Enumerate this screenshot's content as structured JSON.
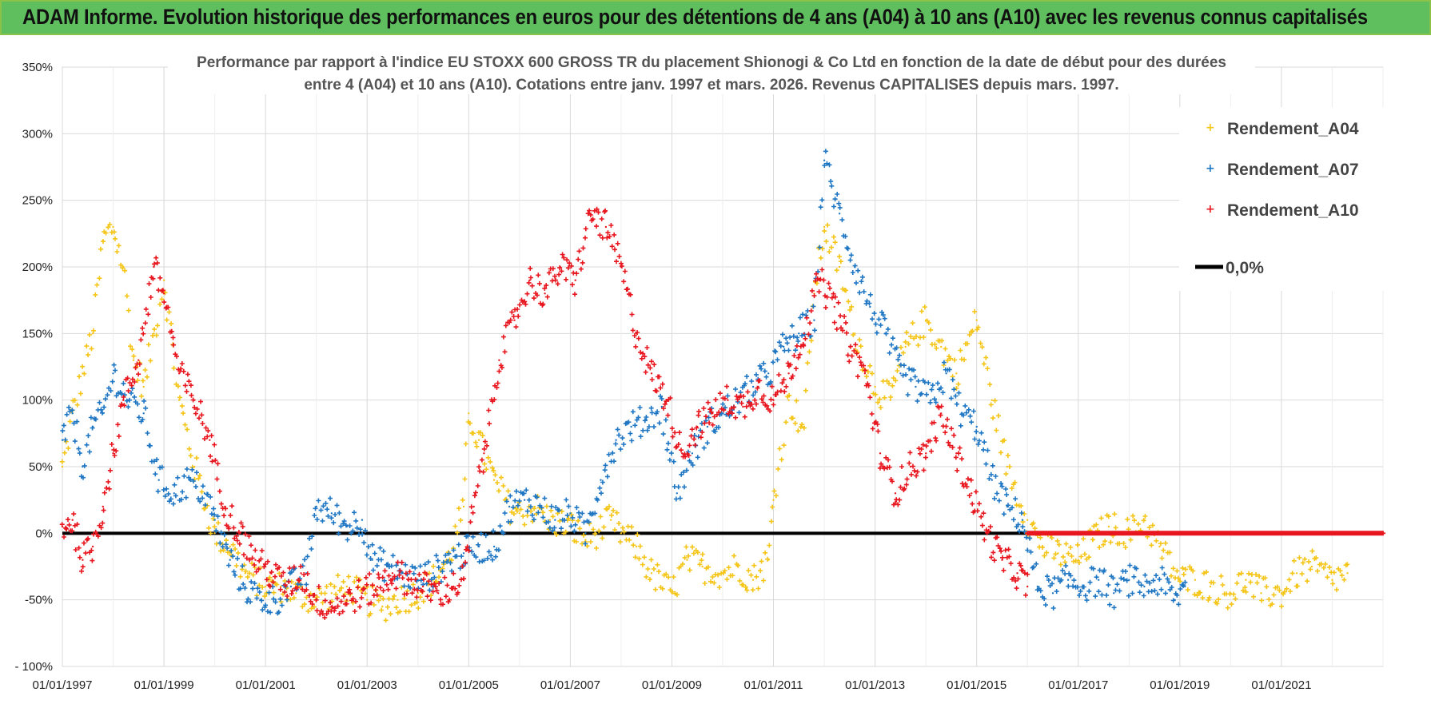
{
  "banner": {
    "title": "ADAM Informe. Evolution historique des performances en euros pour des détentions de 4 ans (A04) à 10 ans (A10) avec les revenus connus capitalisés"
  },
  "colors": {
    "banner_bg": "#5fbf5f",
    "a04": "#f5c518",
    "a07": "#1f77c4",
    "a10": "#e8161e",
    "zero": "#000000",
    "grid": "#d9d9d9"
  },
  "chart_data": {
    "type": "scatter",
    "title_line1": "Performance par rapport à l'indice EU STOXX 600 GROSS TR  du placement Shionogi & Co Ltd en fonction de la date de début pour des durées",
    "title_line2": "entre 4 (A04) et 10 ans (A10).  Cotations entre janv. 1997 et mars. 2026.  Revenus CAPITALISES depuis mars. 1997.",
    "xlabel": "",
    "ylabel": "",
    "x_start_year": 1997,
    "x_end_year": 2023,
    "xlim": [
      1997.0,
      2023.0
    ],
    "ylim": [
      -100,
      350
    ],
    "y_ticks": [
      -100,
      -50,
      0,
      50,
      100,
      150,
      200,
      250,
      300,
      350
    ],
    "y_tick_labels": [
      "- 100%",
      "-50%",
      "0%",
      "50%",
      "100%",
      "150%",
      "200%",
      "250%",
      "300%",
      "350%"
    ],
    "x_ticks": [
      1997,
      1999,
      2001,
      2003,
      2005,
      2007,
      2009,
      2011,
      2013,
      2015,
      2017,
      2019,
      2021
    ],
    "x_tick_labels": [
      "01/01/1997",
      "01/01/1999",
      "01/01/2001",
      "01/01/2003",
      "01/01/2005",
      "01/01/2007",
      "01/01/2009",
      "01/01/2011",
      "01/01/2013",
      "01/01/2015",
      "01/01/2017",
      "01/01/2019",
      "01/01/2021"
    ],
    "legend": [
      "Rendement_A04",
      "Rendement_A07",
      "Rendement_A10",
      "0,0%"
    ],
    "legend_position": "top-right",
    "reference_line": 0,
    "series": [
      {
        "name": "Rendement_A04",
        "x": [
          1997.0,
          1997.2,
          1997.4,
          1997.6,
          1997.8,
          1998.0,
          1998.2,
          1998.4,
          1998.6,
          1998.8,
          1999.0,
          1999.3,
          1999.6,
          2000.0,
          2000.3,
          2000.6,
          2001.0,
          2001.3,
          2001.6,
          2002.0,
          2002.3,
          2002.6,
          2003.0,
          2003.3,
          2003.6,
          2004.0,
          2004.3,
          2004.6,
          2004.9,
          2005.0,
          2005.2,
          2005.5,
          2005.8,
          2006.0,
          2006.3,
          2006.6,
          2007.0,
          2007.3,
          2007.5,
          2007.8,
          2008.0,
          2008.3,
          2008.6,
          2009.0,
          2009.3,
          2009.6,
          2010.0,
          2010.3,
          2010.6,
          2010.9,
          2011.0,
          2011.3,
          2011.6,
          2011.8,
          2012.0,
          2012.3,
          2012.6,
          2013.0,
          2013.3,
          2013.6,
          2014.0,
          2014.3,
          2014.6,
          2015.0,
          2015.3,
          2015.6,
          2016.0,
          2016.3,
          2016.6,
          2017.0,
          2017.3,
          2017.6,
          2018.0,
          2018.3,
          2018.6,
          2019.0,
          2019.3,
          2019.6,
          2020.0,
          2020.3,
          2020.6,
          2021.0,
          2021.3,
          2021.6,
          2022.0,
          2022.3
        ],
        "y": [
          50,
          90,
          120,
          150,
          220,
          230,
          200,
          130,
          110,
          150,
          190,
          100,
          50,
          0,
          -10,
          -30,
          -40,
          -40,
          -45,
          -50,
          -45,
          -40,
          -50,
          -55,
          -50,
          -45,
          -35,
          -20,
          20,
          90,
          70,
          40,
          20,
          15,
          20,
          10,
          5,
          -5,
          0,
          10,
          0,
          -10,
          -30,
          -45,
          -20,
          -25,
          -30,
          -25,
          -35,
          -20,
          25,
          100,
          80,
          180,
          230,
          200,
          150,
          110,
          100,
          140,
          160,
          140,
          120,
          160,
          100,
          50,
          10,
          -10,
          -15,
          -20,
          -5,
          5,
          0,
          10,
          -10,
          -35,
          -35,
          -40,
          -45,
          -35,
          -45,
          -45,
          -30,
          -25,
          -35,
          -30
        ]
      },
      {
        "name": "Rendement_A07",
        "x": [
          1997.0,
          1997.2,
          1997.4,
          1997.6,
          1997.8,
          1998.0,
          1998.3,
          1998.6,
          1998.9,
          1999.2,
          1999.5,
          1999.8,
          2000.0,
          2000.3,
          2000.6,
          2000.9,
          2001.2,
          2001.5,
          2001.8,
          2002.0,
          2002.3,
          2002.6,
          2002.9,
          2003.1,
          2003.4,
          2003.7,
          2004.0,
          2004.3,
          2004.6,
          2004.9,
          2005.2,
          2005.5,
          2005.8,
          2006.1,
          2006.4,
          2006.7,
          2007.0,
          2007.3,
          2007.6,
          2007.9,
          2008.2,
          2008.5,
          2008.8,
          2009.1,
          2009.4,
          2009.7,
          2010.0,
          2010.3,
          2010.6,
          2010.9,
          2011.2,
          2011.5,
          2011.8,
          2012.0,
          2012.3,
          2012.6,
          2012.9,
          2013.2,
          2013.5,
          2013.8,
          2014.1,
          2014.4,
          2014.7,
          2015.0,
          2015.3,
          2015.6,
          2015.9,
          2016.2,
          2016.5,
          2016.8,
          2017.1,
          2017.4,
          2017.7,
          2018.0,
          2018.3,
          2018.6,
          2018.9,
          2019.1
        ],
        "y": [
          70,
          90,
          50,
          80,
          90,
          120,
          100,
          90,
          40,
          30,
          40,
          30,
          10,
          -20,
          -40,
          -50,
          -50,
          -40,
          -30,
          20,
          15,
          5,
          10,
          -20,
          -25,
          -30,
          -35,
          -30,
          -20,
          -15,
          -10,
          -10,
          20,
          25,
          20,
          10,
          15,
          0,
          40,
          70,
          80,
          85,
          95,
          30,
          60,
          80,
          90,
          100,
          110,
          120,
          140,
          150,
          160,
          280,
          240,
          200,
          170,
          150,
          120,
          110,
          100,
          120,
          90,
          80,
          40,
          20,
          10,
          -40,
          -45,
          -35,
          -40,
          -35,
          -45,
          -35,
          -40,
          -35,
          -50,
          -40
        ]
      },
      {
        "name": "Rendement_A10",
        "x": [
          1997.0,
          1997.2,
          1997.4,
          1997.6,
          1997.8,
          1998.0,
          1998.2,
          1998.5,
          1998.8,
          1999.0,
          1999.3,
          1999.6,
          1999.9,
          2000.2,
          2000.5,
          2000.8,
          2001.1,
          2001.4,
          2001.7,
          2002.0,
          2002.3,
          2002.6,
          2002.9,
          2003.2,
          2003.5,
          2003.8,
          2004.1,
          2004.4,
          2004.7,
          2004.9,
          2005.1,
          2005.3,
          2005.6,
          2005.9,
          2006.2,
          2006.5,
          2006.8,
          2007.1,
          2007.4,
          2007.7,
          2008.0,
          2008.3,
          2008.6,
          2008.9,
          2009.2,
          2009.5,
          2009.8,
          2010.1,
          2010.4,
          2010.7,
          2011.0,
          2011.3,
          2011.6,
          2011.9,
          2012.2,
          2012.5,
          2012.8,
          2013.1,
          2013.4,
          2013.7,
          2014.0,
          2014.3,
          2014.6,
          2014.9,
          2015.2,
          2015.5,
          2015.8,
          2016.0
        ],
        "y": [
          5,
          10,
          -20,
          -10,
          20,
          60,
          100,
          130,
          200,
          180,
          120,
          100,
          70,
          20,
          0,
          -20,
          -30,
          -40,
          -30,
          -50,
          -55,
          -50,
          -45,
          -40,
          -30,
          -35,
          -40,
          -45,
          -40,
          -35,
          20,
          60,
          130,
          160,
          190,
          180,
          200,
          190,
          240,
          230,
          200,
          150,
          120,
          100,
          60,
          80,
          90,
          100,
          95,
          110,
          100,
          120,
          150,
          190,
          170,
          140,
          120,
          60,
          30,
          50,
          60,
          90,
          60,
          30,
          0,
          -20,
          -30,
          -40
        ]
      }
    ]
  }
}
